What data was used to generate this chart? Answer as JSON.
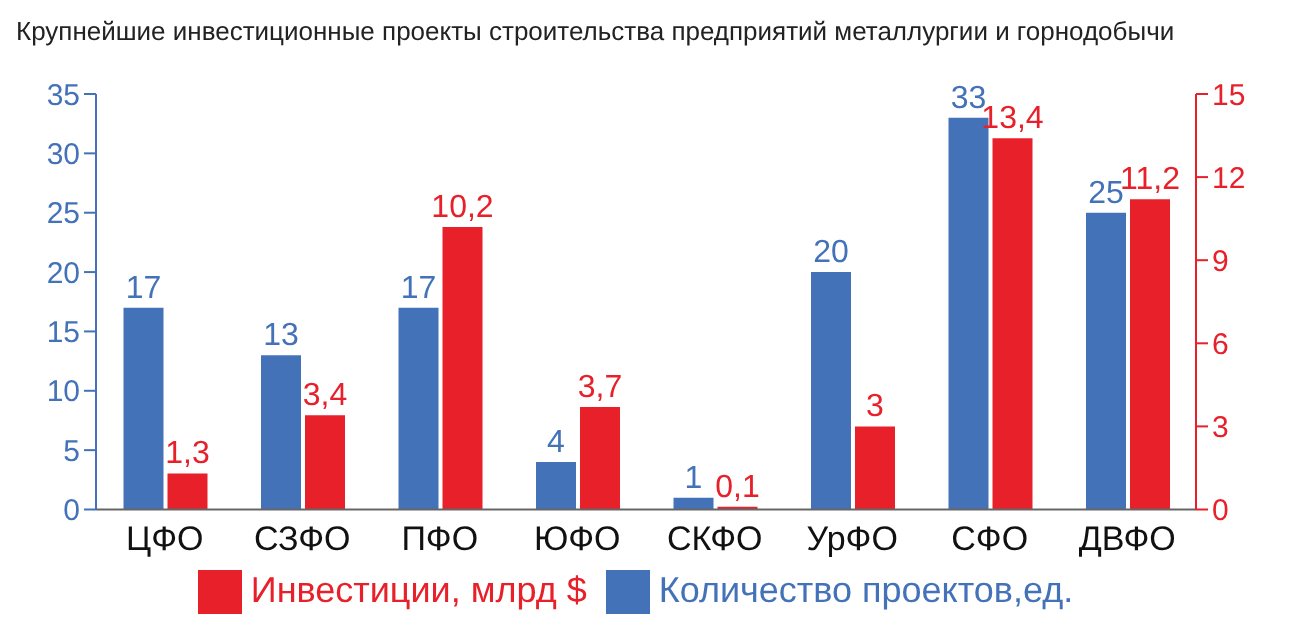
{
  "chart_data": {
    "type": "bar",
    "title": "Крупнейшие инвестиционные проекты строительства предприятий металлургии и горнодобычи",
    "categories": [
      "ЦФО",
      "СЗФО",
      "ПФО",
      "ЮФО",
      "СКФО",
      "УрФО",
      "СФО",
      "ДВФО"
    ],
    "series": [
      {
        "name": "Количество проектов,ед.",
        "color": "#4472b8",
        "values": [
          17,
          13,
          17,
          4,
          1,
          20,
          33,
          25
        ],
        "value_labels": [
          "17",
          "13",
          "17",
          "4",
          "1",
          "20",
          "33",
          "25"
        ]
      },
      {
        "name": "Инвестиции, млрд $",
        "color": "#e8202a",
        "axis": "y2",
        "values": [
          1.3,
          3.4,
          10.2,
          3.7,
          0.1,
          3,
          13.4,
          11.2
        ],
        "value_labels": [
          "1,3",
          "3,4",
          "10,2",
          "3,7",
          "0,1",
          "3",
          "13,4",
          "11,2"
        ]
      }
    ],
    "ylim": [
      0,
      35
    ],
    "yticks": [
      0,
      5,
      10,
      15,
      20,
      25,
      30,
      35
    ],
    "y2lim": [
      0,
      15
    ],
    "y2ticks": [
      0,
      3,
      6,
      9,
      12,
      15
    ],
    "grid": false,
    "legend": "bottom"
  }
}
